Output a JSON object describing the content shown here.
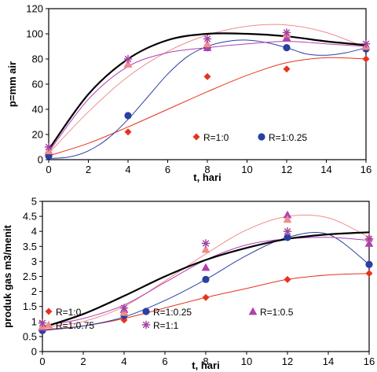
{
  "chart_data": [
    {
      "type": "scatter",
      "xlabel": "t,  hari",
      "ylabel": "p=mm air",
      "xlim": [
        0,
        16
      ],
      "ylim": [
        0,
        120
      ],
      "xticks": [
        "0",
        "2",
        "4",
        "6",
        "8",
        "10",
        "12",
        "14",
        "16"
      ],
      "yticks": [
        "0",
        "20",
        "40",
        "60",
        "80",
        "100",
        "120"
      ],
      "grid": false,
      "legend_position": "inside-bottom",
      "legend": [
        "R=1:0",
        "R=1:0.25"
      ],
      "series": [
        {
          "name": "R=1:0",
          "marker": "diamond",
          "color": "#e8321e",
          "x": [
            0,
            4,
            8,
            12,
            16
          ],
          "values": [
            4,
            22,
            66,
            72,
            80
          ]
        },
        {
          "name": "R=1:0.25",
          "marker": "circle",
          "color": "#2b3fa0",
          "x": [
            0,
            4,
            8,
            12,
            16
          ],
          "values": [
            3,
            35,
            89,
            89,
            88
          ]
        },
        {
          "marker": "triangle",
          "color": "#b23fb0",
          "x": [
            0,
            4,
            8,
            12,
            16
          ],
          "values": [
            7,
            76,
            89,
            97,
            90
          ]
        },
        {
          "marker": "triangle",
          "color": "#f08c8c",
          "x": [
            0,
            4,
            8,
            12,
            16
          ],
          "values": [
            7,
            76,
            92,
            100,
            90
          ]
        },
        {
          "marker": "star",
          "color": "#a040a0",
          "x": [
            0,
            4,
            8,
            12,
            16
          ],
          "values": [
            10,
            80,
            96,
            101,
            92
          ]
        }
      ],
      "trendlines": [
        {
          "color": "#e8321e",
          "width": 1,
          "x": [
            0,
            2,
            4,
            6,
            8,
            10,
            12,
            14,
            16
          ],
          "values": [
            3,
            13,
            26,
            40,
            54,
            67,
            77,
            81,
            80
          ]
        },
        {
          "color": "#2b3fa0",
          "width": 1,
          "x": [
            0,
            1,
            2,
            3,
            4,
            5,
            6,
            7,
            8,
            9,
            10,
            11,
            12,
            13,
            14,
            15,
            16
          ],
          "values": [
            1,
            2,
            7,
            17,
            32,
            50,
            68,
            82,
            90,
            94,
            95,
            93,
            89,
            84,
            83,
            85,
            89
          ]
        },
        {
          "color": "#f08c8c",
          "width": 1,
          "x": [
            0,
            2,
            4,
            6,
            8,
            10,
            12,
            14,
            16
          ],
          "values": [
            5,
            38,
            66,
            86,
            99,
            106,
            107,
            101,
            89
          ]
        },
        {
          "color": "#b23fb0",
          "width": 1,
          "x": [
            0,
            2,
            4,
            6,
            8,
            10,
            12,
            14,
            16
          ],
          "values": [
            6,
            48,
            74,
            85,
            89,
            92,
            94,
            92,
            90
          ]
        },
        {
          "color": "#000000",
          "width": 2.2,
          "x": [
            0,
            2,
            4,
            6,
            8,
            10,
            12,
            14,
            16
          ],
          "values": [
            8,
            52,
            80,
            95,
            100,
            100,
            98,
            94,
            91
          ]
        }
      ]
    },
    {
      "type": "scatter",
      "xlabel": "t,  hari",
      "ylabel": "produk gas m3/menit",
      "xlim": [
        0,
        16
      ],
      "ylim": [
        0,
        5
      ],
      "xticks": [
        "0",
        "2",
        "4",
        "6",
        "8",
        "10",
        "12",
        "14",
        "16"
      ],
      "yticks": [
        "0",
        "0.5",
        "1",
        "1.5",
        "2",
        "2.5",
        "3",
        "3.5",
        "4",
        "4.5",
        "5"
      ],
      "grid": false,
      "legend_position": "inside-bottom",
      "legend": [
        "R=1:0",
        "R=1:0.25",
        "R=1:0.5",
        "R=1:0.75",
        "R=1:1"
      ],
      "series": [
        {
          "name": "R=1:0",
          "marker": "diamond",
          "color": "#e8321e",
          "x": [
            0,
            4,
            8,
            12,
            16
          ],
          "values": [
            0.75,
            1.05,
            1.8,
            2.4,
            2.6
          ]
        },
        {
          "name": "R=1:0.25",
          "marker": "circle",
          "color": "#2b3fa0",
          "x": [
            0,
            4,
            8,
            12,
            16
          ],
          "values": [
            0.7,
            1.2,
            2.4,
            3.8,
            2.9
          ]
        },
        {
          "name": "R=1:0.5",
          "marker": "triangle",
          "color": "#b23fb0",
          "x": [
            0,
            4,
            8,
            12,
            16
          ],
          "values": [
            0.8,
            1.4,
            2.8,
            4.55,
            3.6
          ]
        },
        {
          "name": "R=1:0.75",
          "marker": "triangle",
          "color": "#f08c8c",
          "x": [
            0,
            4,
            8,
            12,
            16
          ],
          "values": [
            0.85,
            1.3,
            3.4,
            4.4,
            3.8
          ]
        },
        {
          "name": "R=1:1",
          "marker": "star",
          "color": "#a040a0",
          "x": [
            0,
            4,
            8,
            12,
            16
          ],
          "values": [
            0.95,
            1.45,
            3.6,
            4.0,
            3.75
          ]
        }
      ],
      "trendlines": [
        {
          "color": "#e8321e",
          "width": 1,
          "x": [
            0,
            2,
            4,
            6,
            8,
            10,
            12,
            14,
            16
          ],
          "values": [
            0.73,
            0.85,
            1.1,
            1.45,
            1.8,
            2.1,
            2.4,
            2.55,
            2.6
          ]
        },
        {
          "color": "#2b3fa0",
          "width": 1,
          "x": [
            0,
            2,
            4,
            6,
            8,
            10,
            12,
            14,
            16
          ],
          "values": [
            0.7,
            0.85,
            1.15,
            1.7,
            2.4,
            3.2,
            3.8,
            3.9,
            2.9
          ]
        },
        {
          "color": "#f08c8c",
          "width": 1,
          "x": [
            0,
            2,
            4,
            6,
            8,
            10,
            12,
            14,
            16
          ],
          "values": [
            0.8,
            1.0,
            1.5,
            2.35,
            3.25,
            4.05,
            4.5,
            4.45,
            3.8
          ]
        },
        {
          "color": "#b23fb0",
          "width": 1,
          "x": [
            0,
            2,
            4,
            6,
            8,
            10,
            12,
            14,
            16
          ],
          "values": [
            0.85,
            1.1,
            1.55,
            2.3,
            3.05,
            3.55,
            3.75,
            3.8,
            3.7
          ]
        },
        {
          "color": "#000000",
          "width": 2.2,
          "x": [
            0,
            2,
            4,
            6,
            8,
            10,
            12,
            14,
            16
          ],
          "values": [
            0.8,
            1.25,
            1.85,
            2.5,
            3.05,
            3.45,
            3.75,
            3.9,
            3.97
          ]
        }
      ]
    }
  ]
}
